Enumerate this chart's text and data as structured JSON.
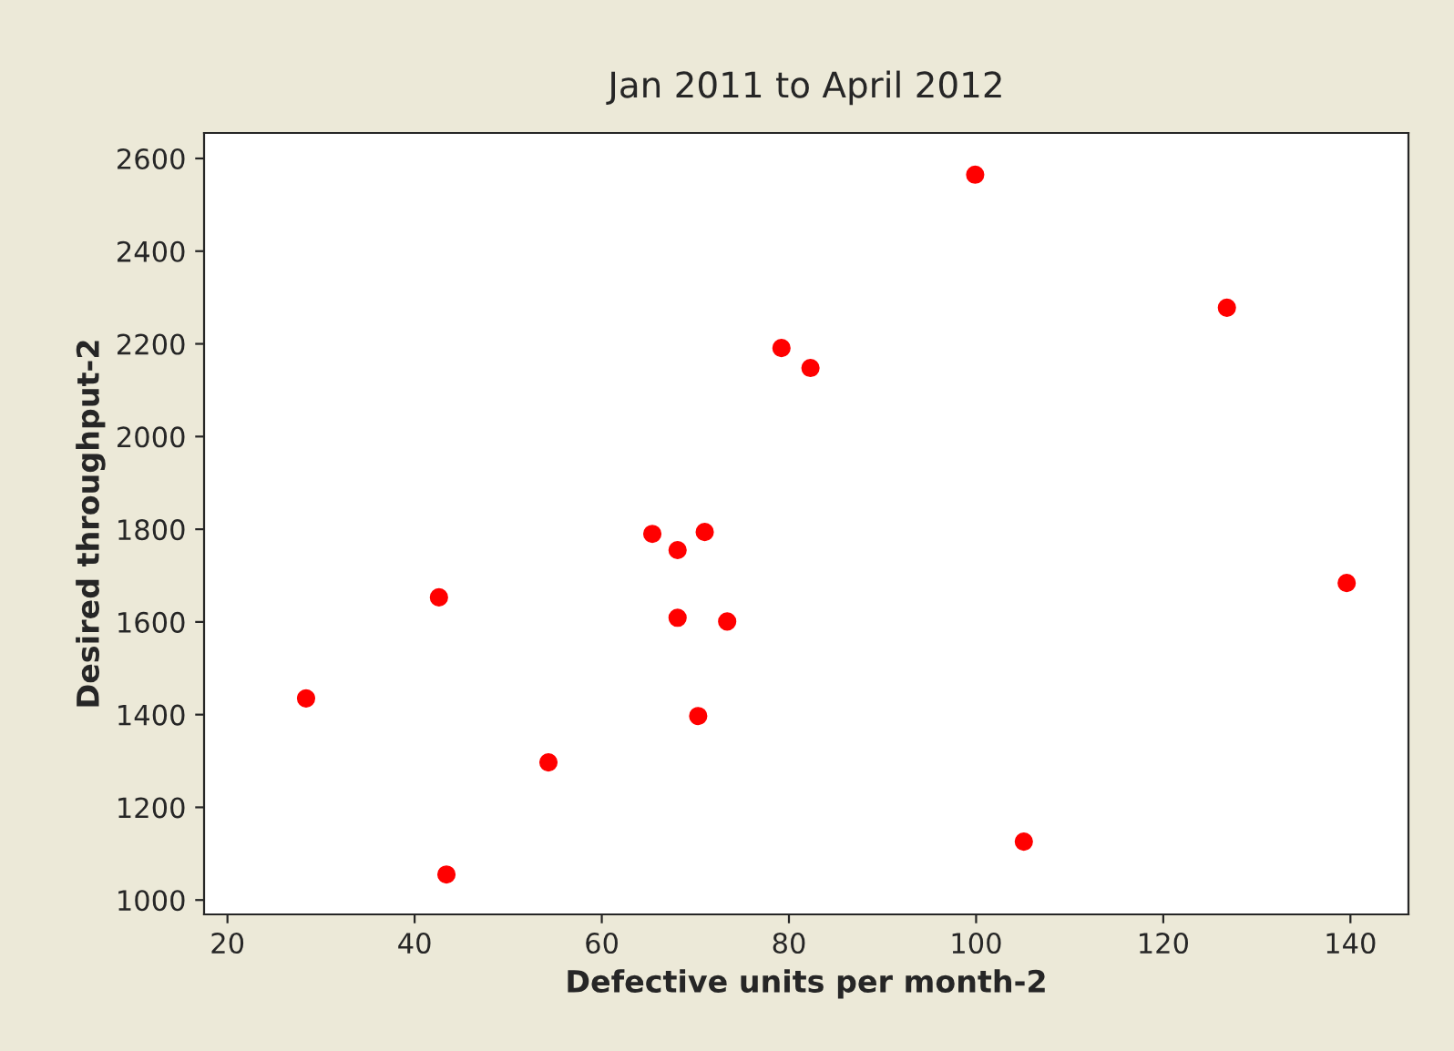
{
  "chart_data": {
    "type": "scatter",
    "title": "Jan 2011 to April 2012",
    "xlabel": "Defective units per month-2",
    "ylabel": "Desired throughput-2",
    "series": [
      {
        "color": "#ff0000",
        "x": [
          28.4,
          42.6,
          43.4,
          54.3,
          65.4,
          68.1,
          68.1,
          71.0,
          70.3,
          73.4,
          79.2,
          82.3,
          99.9,
          105.1,
          126.8,
          139.6
        ],
        "values": [
          1435,
          1653,
          1055,
          1297,
          1790,
          1755,
          1609,
          1794,
          1397,
          1601,
          2191,
          2148,
          2565,
          1126,
          2278,
          1684
        ]
      }
    ],
    "xlim": [
      17.5,
      146.2
    ],
    "ylim": [
      969,
      2655
    ],
    "xticks": [
      20,
      40,
      60,
      80,
      100,
      120,
      140
    ],
    "yticks": [
      1000,
      1200,
      1400,
      1600,
      1800,
      2000,
      2200,
      2400,
      2600
    ],
    "marker": "circle",
    "grid": false,
    "legend": false
  }
}
